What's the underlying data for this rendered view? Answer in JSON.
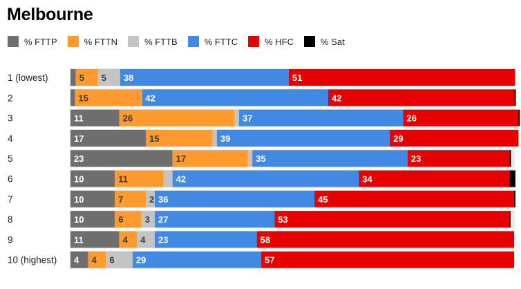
{
  "chart_data": {
    "type": "bar",
    "orientation": "horizontal",
    "stacked": true,
    "title": "Melbourne",
    "xlabel": "",
    "ylabel": "",
    "xlim": [
      0,
      100
    ],
    "grid": false,
    "legend_position": "top-left",
    "categories": [
      "1 (lowest)",
      "2",
      "3",
      "4",
      "5",
      "6",
      "7",
      "8",
      "9",
      "10 (highest)"
    ],
    "series": [
      {
        "name": "% FTTP",
        "color": "#6e6e6e",
        "label_color": "#ffffff",
        "values": [
          1.2,
          1,
          11,
          17,
          23,
          10,
          10,
          10,
          11,
          4
        ],
        "labels": [
          "",
          "",
          "11",
          "17",
          "23",
          "10",
          "10",
          "10",
          "11",
          "4"
        ]
      },
      {
        "name": "% FTTN",
        "color": "#ff9a2e",
        "label_color": "#3a3a3a",
        "values": [
          5,
          15,
          26,
          15,
          17,
          11,
          7,
          6,
          4,
          4
        ],
        "labels": [
          "5",
          "15",
          "26",
          "15",
          "17",
          "11",
          "7",
          "6",
          "4",
          "4"
        ]
      },
      {
        "name": "% FTTB",
        "color": "#c4c4c4",
        "label_color": "#3a3a3a",
        "values": [
          5,
          0.1,
          1,
          1,
          1,
          2,
          2,
          3,
          4,
          6
        ],
        "labels": [
          "5",
          "",
          "",
          "",
          "",
          "",
          "2",
          "3",
          "4",
          "6"
        ]
      },
      {
        "name": "% FTTC",
        "color": "#4189e2",
        "label_color": "#ffffff",
        "values": [
          38,
          42,
          37,
          39,
          35,
          42,
          36,
          27,
          23,
          29
        ],
        "labels": [
          "38",
          "42",
          "37",
          "39",
          "35",
          "42",
          "36",
          "27",
          "23",
          "29"
        ]
      },
      {
        "name": "% HFC",
        "color": "#e60000",
        "label_color": "#ffffff",
        "values": [
          51,
          42,
          26,
          29,
          23,
          34,
          45,
          53,
          58,
          57
        ],
        "labels": [
          "51",
          "42",
          "26",
          "29",
          "23",
          "34",
          "45",
          "53",
          "58",
          "57"
        ]
      },
      {
        "name": "% Sat",
        "color": "#000000",
        "label_color": "#ffffff",
        "values": [
          0,
          0.3,
          0.3,
          0,
          0.3,
          1.3,
          0.3,
          0.2,
          0,
          0
        ],
        "labels": [
          "",
          "",
          "",
          "",
          "",
          "",
          "",
          "",
          "",
          ""
        ]
      }
    ]
  }
}
